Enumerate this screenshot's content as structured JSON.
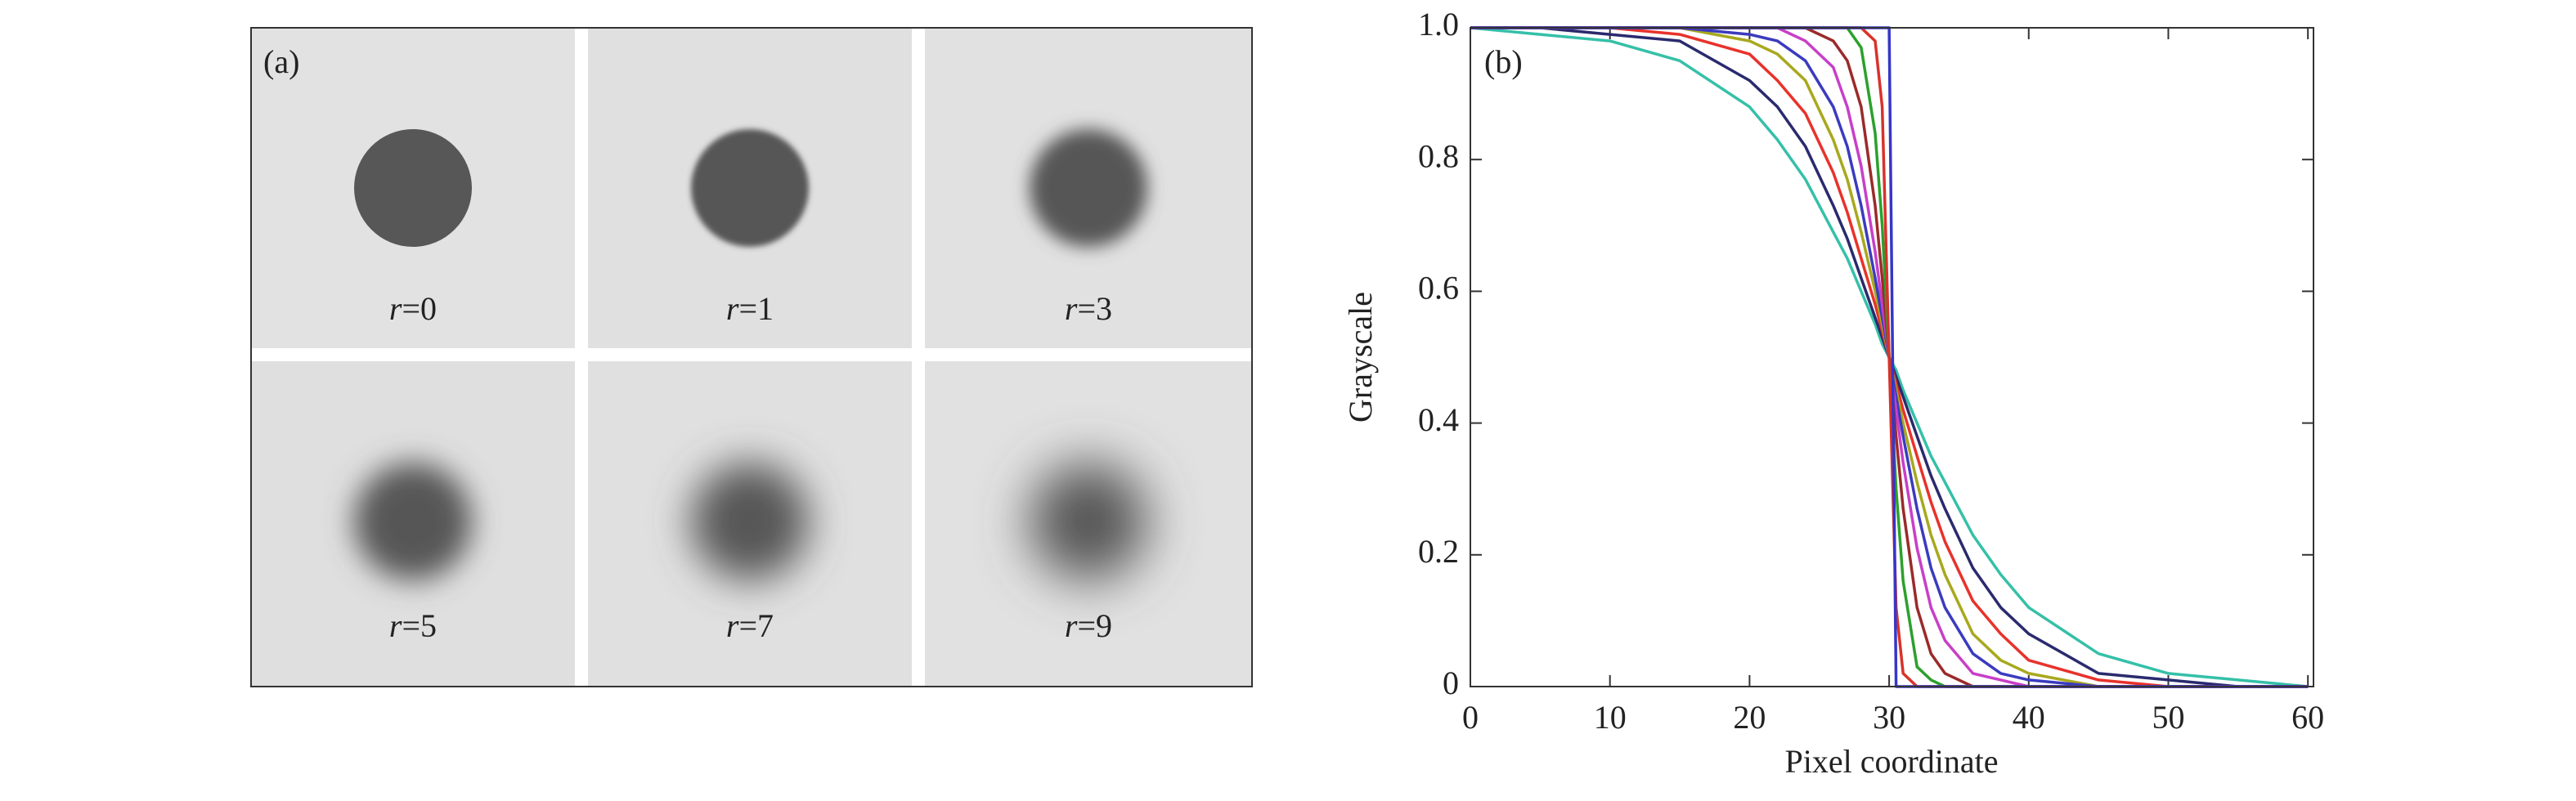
{
  "panel_a": {
    "label": "(a)",
    "tiles": [
      {
        "label": "r=0",
        "r": 0
      },
      {
        "label": "r=1",
        "r": 1
      },
      {
        "label": "r=3",
        "r": 3
      },
      {
        "label": "r=5",
        "r": 5
      },
      {
        "label": "r=7",
        "r": 7
      },
      {
        "label": "r=9",
        "r": 9
      }
    ]
  },
  "chart_data": {
    "type": "line",
    "panel_label": "(b)",
    "xlabel": "Pixel coordinate",
    "ylabel": "Grayscale",
    "x": [
      0,
      5,
      10,
      15,
      20,
      22,
      24,
      26,
      27,
      28,
      29,
      29.5,
      30,
      30.5,
      31,
      32,
      33,
      34,
      36,
      38,
      40,
      45,
      50,
      55,
      60
    ],
    "series": [
      {
        "color": "#35c0a8",
        "values": [
          1,
          0.99,
          0.98,
          0.95,
          0.88,
          0.83,
          0.77,
          0.69,
          0.65,
          0.6,
          0.55,
          0.52,
          0.5,
          0.48,
          0.45,
          0.4,
          0.35,
          0.31,
          0.23,
          0.17,
          0.12,
          0.05,
          0.02,
          0.01,
          0
        ]
      },
      {
        "color": "#2a2a6e",
        "values": [
          1,
          1,
          0.99,
          0.98,
          0.92,
          0.88,
          0.82,
          0.73,
          0.68,
          0.62,
          0.56,
          0.53,
          0.5,
          0.47,
          0.44,
          0.38,
          0.32,
          0.27,
          0.18,
          0.12,
          0.08,
          0.02,
          0.01,
          0,
          0
        ]
      },
      {
        "color": "#e8322b",
        "values": [
          1,
          1,
          1,
          0.99,
          0.96,
          0.92,
          0.87,
          0.78,
          0.72,
          0.65,
          0.58,
          0.54,
          0.5,
          0.46,
          0.42,
          0.35,
          0.28,
          0.22,
          0.13,
          0.08,
          0.04,
          0.01,
          0,
          0,
          0
        ]
      },
      {
        "color": "#a8a81e",
        "values": [
          1,
          1,
          1,
          1,
          0.98,
          0.96,
          0.92,
          0.83,
          0.77,
          0.69,
          0.6,
          0.55,
          0.5,
          0.45,
          0.4,
          0.31,
          0.23,
          0.17,
          0.08,
          0.04,
          0.02,
          0,
          0,
          0,
          0
        ]
      },
      {
        "color": "#3b3bbf",
        "values": [
          1,
          1,
          1,
          1,
          0.99,
          0.98,
          0.95,
          0.88,
          0.82,
          0.73,
          0.62,
          0.56,
          0.5,
          0.44,
          0.38,
          0.27,
          0.18,
          0.12,
          0.05,
          0.02,
          0.01,
          0,
          0,
          0,
          0
        ]
      },
      {
        "color": "#c83fc8",
        "values": [
          1,
          1,
          1,
          1,
          1,
          1,
          0.98,
          0.94,
          0.88,
          0.79,
          0.66,
          0.58,
          0.5,
          0.42,
          0.34,
          0.21,
          0.12,
          0.07,
          0.02,
          0.01,
          0,
          0,
          0,
          0,
          0
        ]
      },
      {
        "color": "#9b2a2a",
        "values": [
          1,
          1,
          1,
          1,
          1,
          1,
          1,
          0.98,
          0.95,
          0.88,
          0.73,
          0.62,
          0.5,
          0.38,
          0.27,
          0.12,
          0.05,
          0.02,
          0,
          0,
          0,
          0,
          0,
          0,
          0
        ]
      },
      {
        "color": "#2ca02c",
        "values": [
          1,
          1,
          1,
          1,
          1,
          1,
          1,
          1,
          1,
          0.97,
          0.84,
          0.7,
          0.5,
          0.3,
          0.16,
          0.03,
          0.01,
          0,
          0,
          0,
          0,
          0,
          0,
          0,
          0
        ]
      },
      {
        "color": "#d8322b",
        "values": [
          1,
          1,
          1,
          1,
          1,
          1,
          1,
          1,
          1,
          1,
          0.98,
          0.88,
          0.5,
          0.12,
          0.02,
          0,
          0,
          0,
          0,
          0,
          0,
          0,
          0,
          0,
          0
        ]
      },
      {
        "color": "#3636c8",
        "values": [
          1,
          1,
          1,
          1,
          1,
          1,
          1,
          1,
          1,
          1,
          1,
          1,
          1,
          0,
          0,
          0,
          0,
          0,
          0,
          0,
          0,
          0,
          0,
          0,
          0
        ]
      }
    ],
    "xlim": [
      0,
      60.4
    ],
    "ylim": [
      0,
      1
    ],
    "xticks": [
      0,
      10,
      20,
      30,
      40,
      50,
      60
    ],
    "yticks": [
      0,
      0.2,
      0.4,
      0.6,
      0.8,
      {
        "value": 1,
        "label": "1.0"
      }
    ]
  }
}
